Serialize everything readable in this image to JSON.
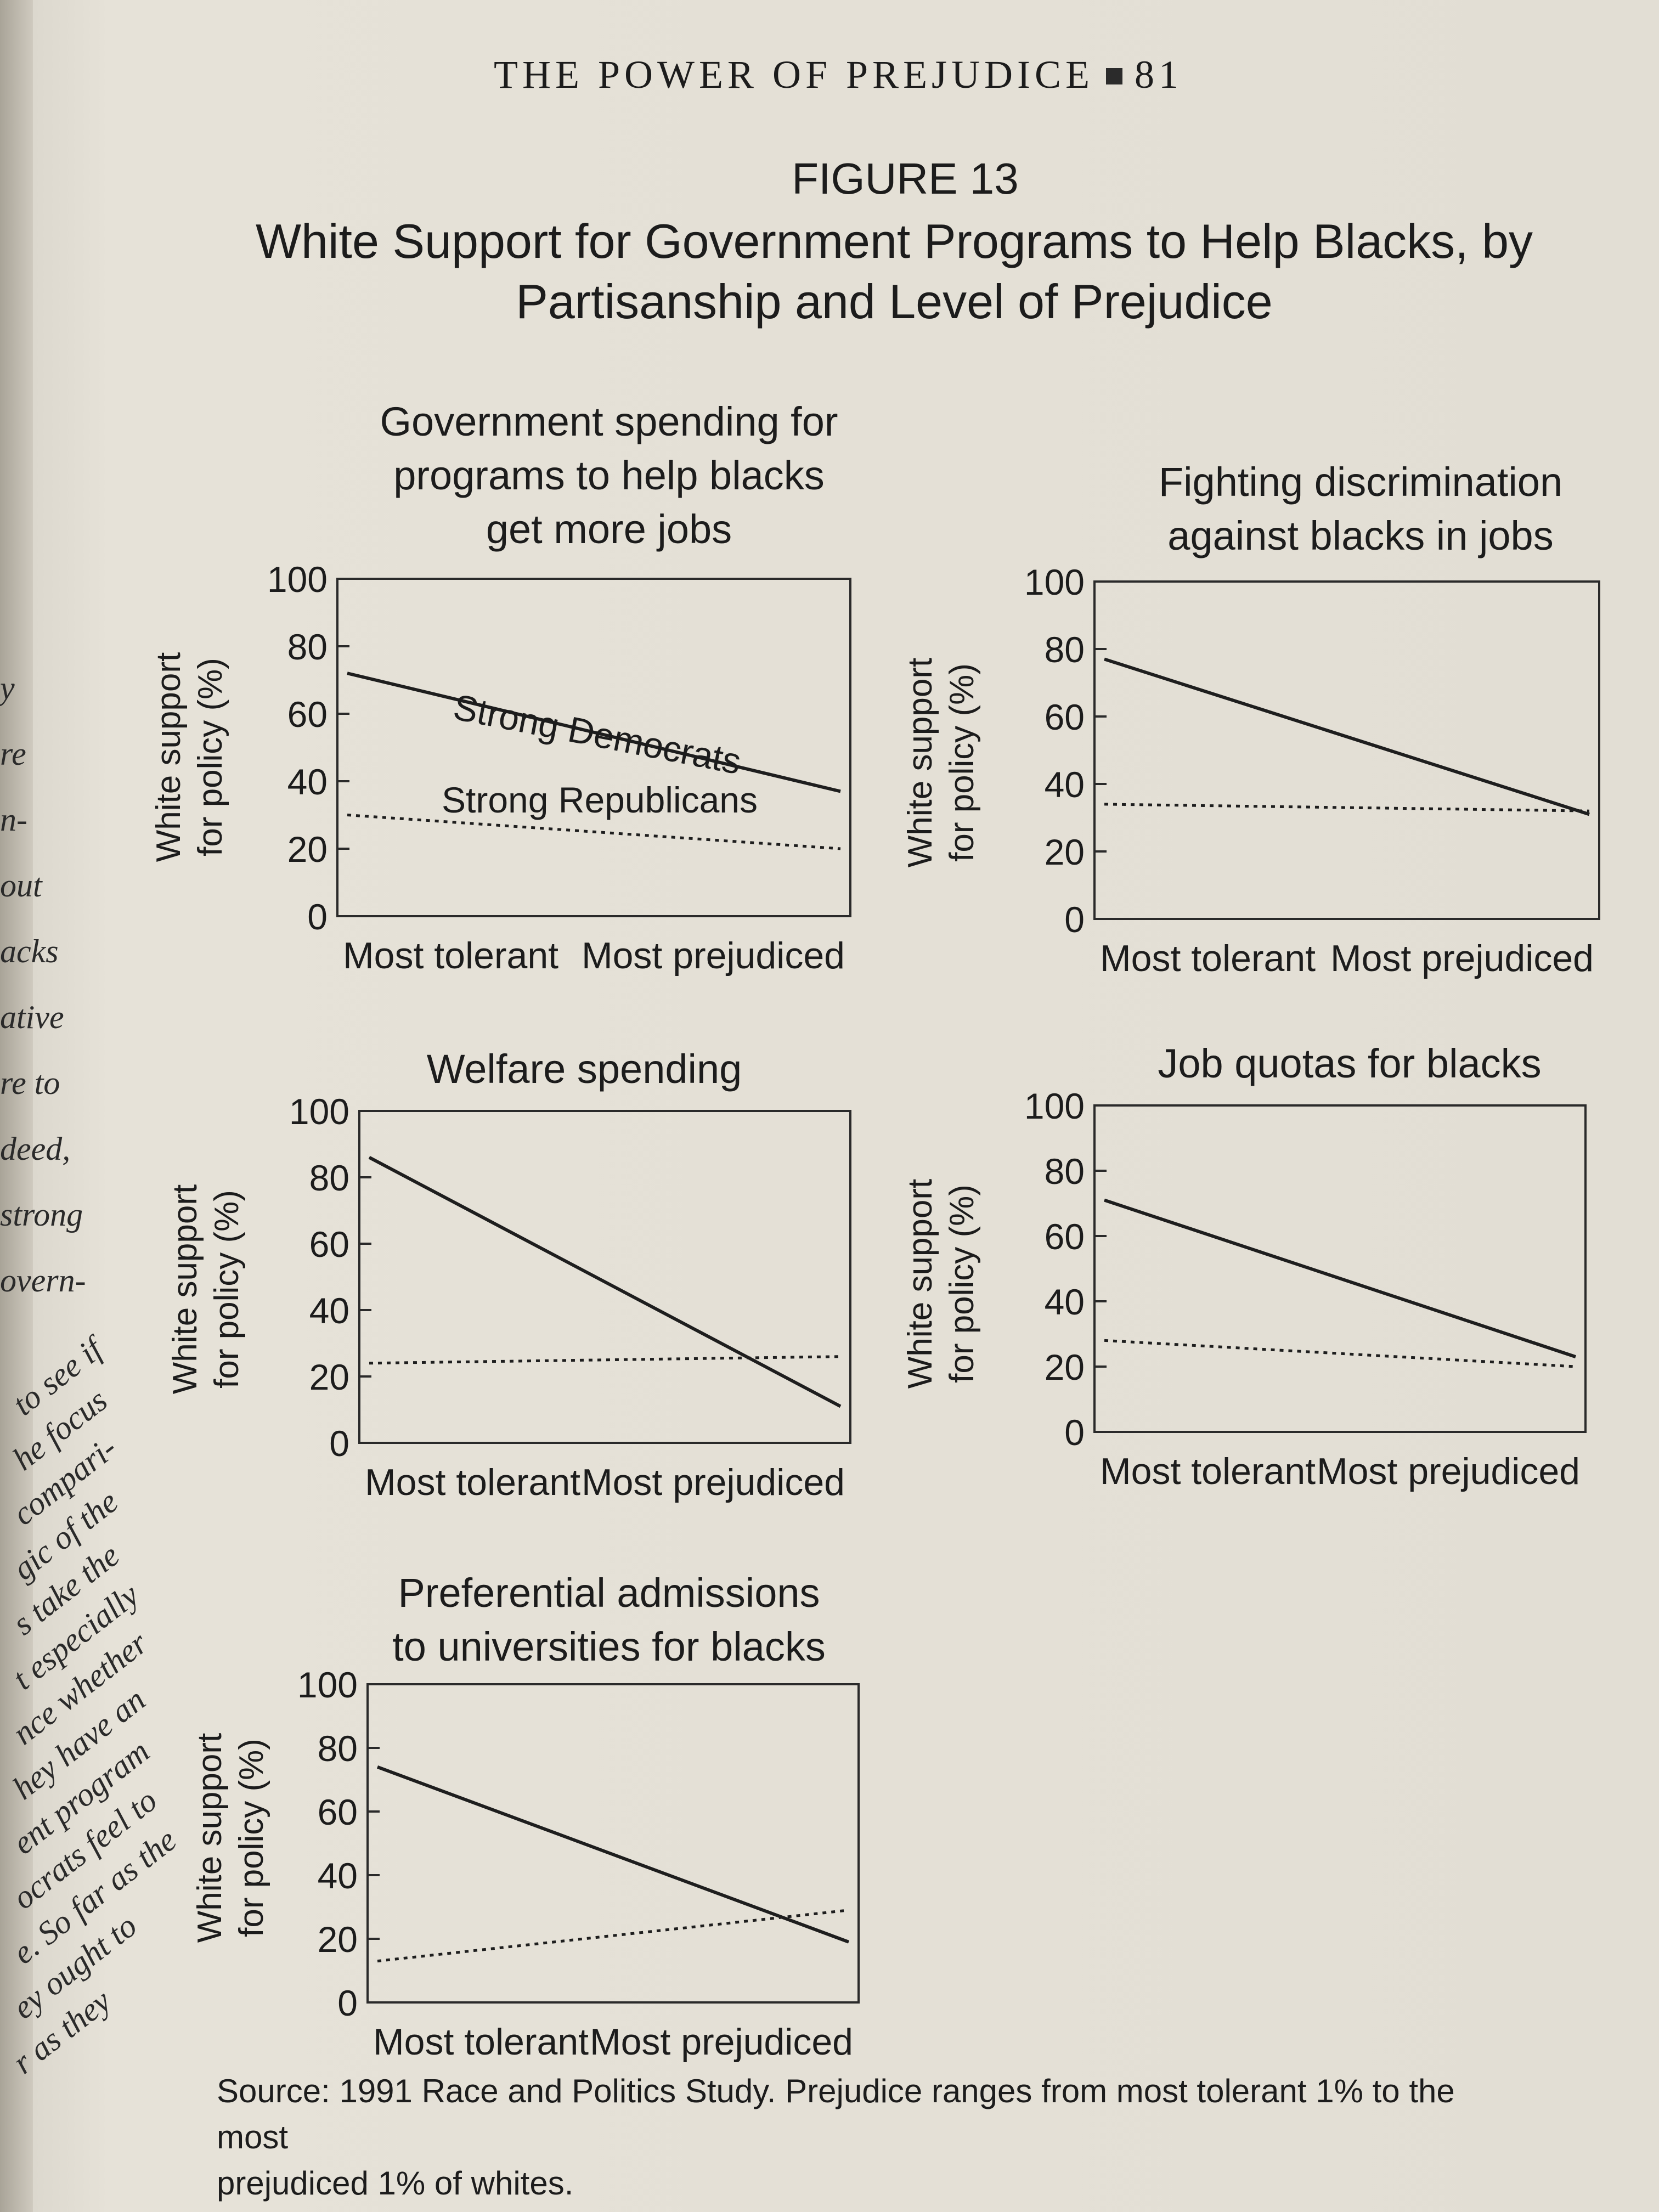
{
  "page": {
    "running_head": "THE POWER OF PREJUDICE",
    "page_number": "81",
    "figure_label": "FIGURE 13",
    "figure_title_line1": "White Support for Government Programs to Help Blacks, by",
    "figure_title_line2": "Partisanship and Level of Prejudice",
    "source_line1": "Source: 1991 Race and Politics Study. Prejudice ranges from most tolerant 1% to the most",
    "source_line2": "prejudiced 1% of whites.",
    "margin_text": [
      "y",
      "re",
      "n-",
      "out",
      "acks",
      "ative",
      "re to",
      "deed,",
      "strong",
      "overn-",
      "to see if",
      "he focus",
      "compari-",
      "gic of the",
      "s take the",
      "t especially",
      "nce whether",
      "hey have an",
      "ent program",
      "ocrats feel to",
      "e. So far as the",
      "ey ought to",
      "r as they"
    ]
  },
  "labels": {
    "panel1_line1": "Government spending for",
    "panel1_line2": "programs to help blacks",
    "panel1_line3": "get more jobs",
    "panel2_line1": "Fighting discrimination",
    "panel2_line2": "against blacks in jobs",
    "panel3_line1": "Welfare spending",
    "panel4_line1": "Job quotas for blacks",
    "panel5_line1": "Preferential admissions",
    "panel5_line2": "to universities for blacks",
    "ylabel_line1": "White support",
    "ylabel_line2": "for policy (%)",
    "strong_democrats": "Strong Democrats",
    "strong_republicans": "Strong Republicans"
  },
  "chart_data": [
    {
      "type": "line",
      "title": "Government spending for programs to help blacks get more jobs",
      "ylabel": "White support for policy (%)",
      "ylim": [
        0,
        100
      ],
      "yticks": [
        "0",
        "20",
        "40",
        "60",
        "80",
        "100"
      ],
      "x": [
        "Most tolerant",
        "Most prejudiced"
      ],
      "series": [
        {
          "name": "Strong Democrats",
          "values": [
            72,
            37
          ],
          "style": "solid"
        },
        {
          "name": "Strong Republicans",
          "values": [
            30,
            20
          ],
          "style": "dotted"
        }
      ]
    },
    {
      "type": "line",
      "title": "Fighting discrimination against blacks in jobs",
      "ylabel": "White support for policy (%)",
      "ylim": [
        0,
        100
      ],
      "yticks": [
        "0",
        "20",
        "40",
        "60",
        "80",
        "100"
      ],
      "x": [
        "Most tolerant",
        "Most prejudiced"
      ],
      "series": [
        {
          "name": "Strong Democrats",
          "values": [
            77,
            31
          ],
          "style": "solid"
        },
        {
          "name": "Strong Republicans",
          "values": [
            34,
            32
          ],
          "style": "dotted"
        }
      ]
    },
    {
      "type": "line",
      "title": "Welfare spending",
      "ylabel": "White support for policy (%)",
      "ylim": [
        0,
        100
      ],
      "yticks": [
        "0",
        "20",
        "40",
        "60",
        "80",
        "100"
      ],
      "x": [
        "Most tolerant",
        "Most prejudiced"
      ],
      "series": [
        {
          "name": "Strong Democrats",
          "values": [
            86,
            11
          ],
          "style": "solid"
        },
        {
          "name": "Strong Republicans",
          "values": [
            24,
            26
          ],
          "style": "dotted"
        }
      ]
    },
    {
      "type": "line",
      "title": "Job quotas for blacks",
      "ylabel": "White support for policy (%)",
      "ylim": [
        0,
        100
      ],
      "yticks": [
        "0",
        "20",
        "40",
        "60",
        "80",
        "100"
      ],
      "x": [
        "Most tolerant",
        "Most prejudiced"
      ],
      "series": [
        {
          "name": "Strong Democrats",
          "values": [
            71,
            23
          ],
          "style": "solid"
        },
        {
          "name": "Strong Republicans",
          "values": [
            28,
            20
          ],
          "style": "dotted"
        }
      ]
    },
    {
      "type": "line",
      "title": "Preferential admissions to universities for blacks",
      "ylabel": "White support for policy (%)",
      "ylim": [
        0,
        100
      ],
      "yticks": [
        "0",
        "20",
        "40",
        "60",
        "80",
        "100"
      ],
      "x": [
        "Most tolerant",
        "Most prejudiced"
      ],
      "series": [
        {
          "name": "Strong Democrats",
          "values": [
            74,
            19
          ],
          "style": "solid"
        },
        {
          "name": "Strong Republicans",
          "values": [
            13,
            29
          ],
          "style": "dotted"
        }
      ]
    }
  ]
}
